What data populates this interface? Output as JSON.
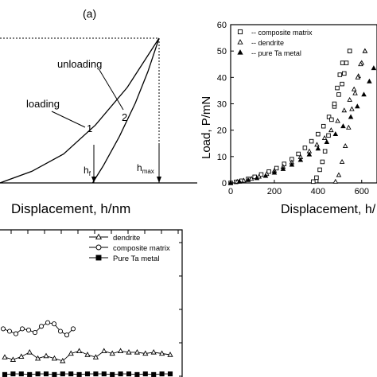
{
  "chart_data": [
    {
      "type": "line",
      "panel_label": "(a)",
      "xlabel": "Displacement, h/nm",
      "ylabel": "",
      "annotations": [
        "unloading",
        "loading",
        "1",
        "2",
        "h_f",
        "h_max"
      ],
      "hf_label": {
        "main": "h",
        "sub": "f"
      },
      "hmax_label": {
        "main": "h",
        "sub": "max"
      },
      "series": [
        {
          "name": "loading",
          "x": [
            0,
            0.2,
            0.4,
            0.6,
            0.8,
            1.0
          ],
          "y": [
            0,
            0.08,
            0.2,
            0.4,
            0.66,
            1.0
          ]
        },
        {
          "name": "unloading",
          "x": [
            0.582,
            0.65,
            0.75,
            0.85,
            0.93,
            1.0
          ],
          "y": [
            0,
            0.12,
            0.32,
            0.55,
            0.77,
            1.0
          ]
        }
      ]
    },
    {
      "type": "scatter",
      "xlabel": "Displacement, h/",
      "ylabel": "Load, P/mN",
      "xlim": [
        0,
        700
      ],
      "ylim": [
        0,
        60
      ],
      "xticks": [
        "0",
        "200",
        "400",
        "600"
      ],
      "yticks": [
        "0",
        "10",
        "20",
        "30",
        "40",
        "50",
        "60"
      ],
      "series": [
        {
          "name": "-- composite matrix",
          "marker": "square-open",
          "points": [
            [
              0,
              0
            ],
            [
              25,
              0.4
            ],
            [
              50,
              0.8
            ],
            [
              80,
              1.5
            ],
            [
              110,
              2.3
            ],
            [
              140,
              3.2
            ],
            [
              175,
              4.3
            ],
            [
              210,
              5.6
            ],
            [
              245,
              7.2
            ],
            [
              280,
              9.0
            ],
            [
              310,
              11.0
            ],
            [
              340,
              13.3
            ],
            [
              370,
              15.8
            ],
            [
              400,
              18.5
            ],
            [
              425,
              21.5
            ],
            [
              450,
              25.0
            ],
            [
              475,
              29.0
            ],
            [
              495,
              33.5
            ],
            [
              510,
              37.5
            ],
            [
              520,
              41.5
            ],
            [
              530,
              45.5
            ],
            [
              545,
              50
            ],
            [
              545,
              50
            ],
            [
              512,
              45.5
            ],
            [
              500,
              41
            ],
            [
              488,
              36
            ],
            [
              475,
              30
            ],
            [
              462,
              24
            ],
            [
              448,
              18
            ],
            [
              432,
              12
            ],
            [
              420,
              8
            ],
            [
              408,
              5
            ],
            [
              393,
              2
            ],
            [
              378,
              0.5
            ]
          ]
        },
        {
          "name": "-- dendrite",
          "marker": "triangle-open",
          "points": [
            [
              0,
              0
            ],
            [
              30,
              0.5
            ],
            [
              60,
              0.9
            ],
            [
              95,
              1.6
            ],
            [
              130,
              2.4
            ],
            [
              165,
              3.4
            ],
            [
              200,
              4.6
            ],
            [
              240,
              6.1
            ],
            [
              280,
              7.8
            ],
            [
              320,
              9.8
            ],
            [
              360,
              12.0
            ],
            [
              395,
              14.5
            ],
            [
              430,
              17.0
            ],
            [
              460,
              20.0
            ],
            [
              490,
              23.5
            ],
            [
              520,
              27.5
            ],
            [
              545,
              31.5
            ],
            [
              565,
              35.5
            ],
            [
              585,
              40.5
            ],
            [
              600,
              45.5
            ],
            [
              615,
              50
            ],
            [
              615,
              50
            ],
            [
              595,
              45
            ],
            [
              582,
              40
            ],
            [
              570,
              34
            ],
            [
              555,
              28
            ],
            [
              540,
              21
            ],
            [
              525,
              14
            ],
            [
              510,
              8
            ],
            [
              495,
              3
            ],
            [
              480,
              0.5
            ]
          ]
        },
        {
          "name": "-- pure Ta metal",
          "marker": "triangle-filled",
          "points": [
            [
              0,
              0
            ],
            [
              40,
              0.5
            ],
            [
              80,
              1.1
            ],
            [
              120,
              1.8
            ],
            [
              160,
              2.7
            ],
            [
              200,
              3.9
            ],
            [
              240,
              5.3
            ],
            [
              280,
              6.9
            ],
            [
              320,
              8.7
            ],
            [
              360,
              10.8
            ],
            [
              400,
              13.0
            ],
            [
              440,
              15.5
            ],
            [
              480,
              18.5
            ],
            [
              515,
              21.5
            ],
            [
              550,
              25.0
            ],
            [
              580,
              29.0
            ],
            [
              610,
              33.5
            ],
            [
              635,
              38.5
            ],
            [
              655,
              43.5
            ],
            [
              670,
              49
            ]
          ]
        }
      ]
    },
    {
      "type": "line",
      "legend": [
        "dendrite",
        "composite matrix",
        "Pure Ta metal"
      ],
      "series": [
        {
          "name": "dendrite",
          "marker": "triangle-open",
          "y": [
            0.32,
            0.28,
            0.33,
            0.4,
            0.3,
            0.34,
            0.3,
            0.26,
            0.38,
            0.42,
            0.36,
            0.32,
            0.42,
            0.38,
            0.42,
            0.4,
            0.4,
            0.38,
            0.4,
            0.38,
            0.36
          ]
        },
        {
          "name": "composite matrix",
          "marker": "circle-open",
          "y": [
            0.78,
            0.74,
            0.7,
            0.78,
            0.76,
            0.72,
            0.82,
            0.88,
            0.86,
            0.74,
            0.68,
            0.78
          ]
        },
        {
          "name": "Pure Ta metal",
          "marker": "square-filled",
          "y": [
            0.04,
            0.05,
            0.05,
            0.04,
            0.05,
            0.05,
            0.04,
            0.05,
            0.05,
            0.04,
            0.05,
            0.05,
            0.05,
            0.04,
            0.05,
            0.05,
            0.04,
            0.05,
            0.04,
            0.05,
            0.05
          ]
        }
      ]
    }
  ]
}
